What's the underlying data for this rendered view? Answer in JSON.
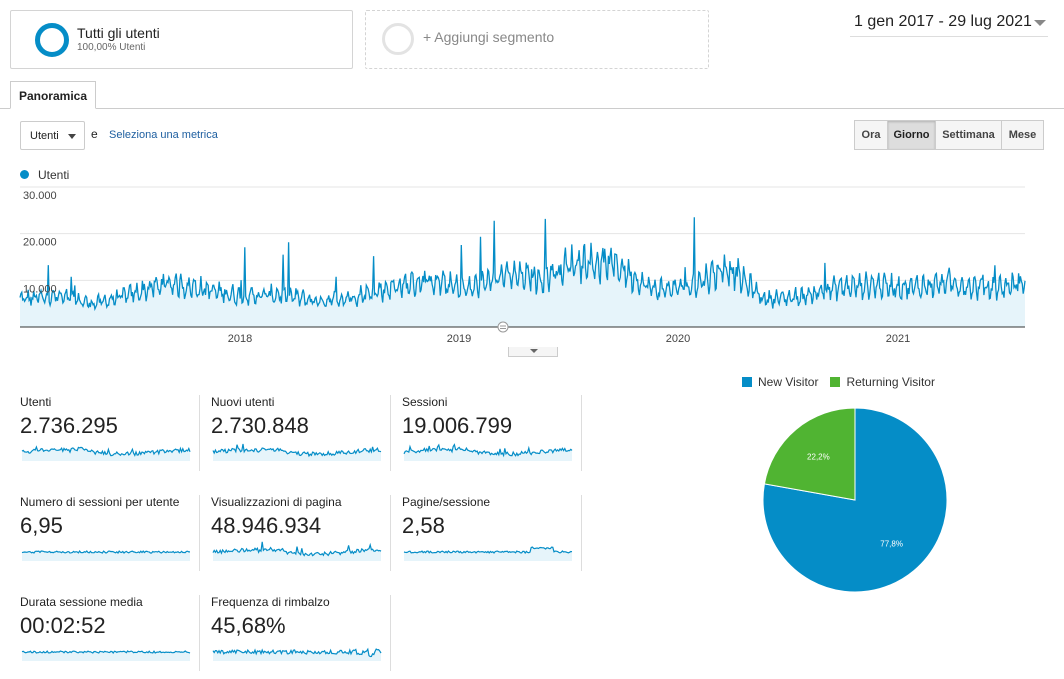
{
  "segments": {
    "active": {
      "title": "Tutti gli utenti",
      "subtitle": "100,00% Utenti"
    },
    "add_label": "+ Aggiungi segmento"
  },
  "date_range": "1 gen 2017 - 29 lug 2021",
  "tabs": [
    {
      "label": "Panoramica"
    }
  ],
  "controls": {
    "metric_select": "Utenti",
    "and_label": "e",
    "pick_metric": "Seleziona una metrica",
    "periods": [
      {
        "label": "Ora",
        "active": false
      },
      {
        "label": "Giorno",
        "active": true
      },
      {
        "label": "Settimana",
        "active": false
      },
      {
        "label": "Mese",
        "active": false
      }
    ]
  },
  "colors": {
    "accent": "#058dc7",
    "returning": "#50b432"
  },
  "chart_data": [
    {
      "type": "area",
      "series": [
        {
          "name": "Utenti"
        }
      ],
      "x": [
        "2017-01",
        "2017-03",
        "2017-05",
        "2017-07",
        "2017-09",
        "2017-11",
        "2018-01",
        "2018-03",
        "2018-05",
        "2018-07",
        "2018-09",
        "2018-11",
        "2019-01",
        "2019-03",
        "2019-05",
        "2019-07",
        "2019-09",
        "2019-11",
        "2020-01",
        "2020-03",
        "2020-05",
        "2020-07",
        "2020-09",
        "2020-11",
        "2021-01",
        "2021-03",
        "2021-05",
        "2021-07"
      ],
      "y": [
        6000,
        6500,
        5000,
        7000,
        9500,
        8000,
        6500,
        7000,
        5500,
        6500,
        8500,
        10000,
        8000,
        11000,
        10500,
        14000,
        13500,
        8000,
        8500,
        13000,
        6000,
        6500,
        8500,
        9000,
        8500,
        9500,
        8000,
        9500
      ],
      "ylim": [
        0,
        30000
      ],
      "yticks": [
        "10.000",
        "20.000",
        "30.000"
      ],
      "xticks": [
        "2018",
        "2019",
        "2020",
        "2021"
      ],
      "grid": true
    },
    {
      "type": "pie",
      "slices": [
        {
          "name": "New Visitor",
          "value": 77.8,
          "label": "77,8%"
        },
        {
          "name": "Returning Visitor",
          "value": 22.2,
          "label": "22,2%"
        }
      ],
      "legend": "top"
    }
  ],
  "scorecards": [
    {
      "label": "Utenti",
      "value": "2.736.295"
    },
    {
      "label": "Nuovi utenti",
      "value": "2.730.848"
    },
    {
      "label": "Sessioni",
      "value": "19.006.799"
    },
    {
      "label": "Numero di sessioni per utente",
      "value": "6,95"
    },
    {
      "label": "Visualizzazioni di pagina",
      "value": "48.946.934"
    },
    {
      "label": "Pagine/sessione",
      "value": "2,58"
    },
    {
      "label": "Durata sessione media",
      "value": "00:02:52"
    },
    {
      "label": "Frequenza di rimbalzo",
      "value": "45,68%"
    }
  ]
}
